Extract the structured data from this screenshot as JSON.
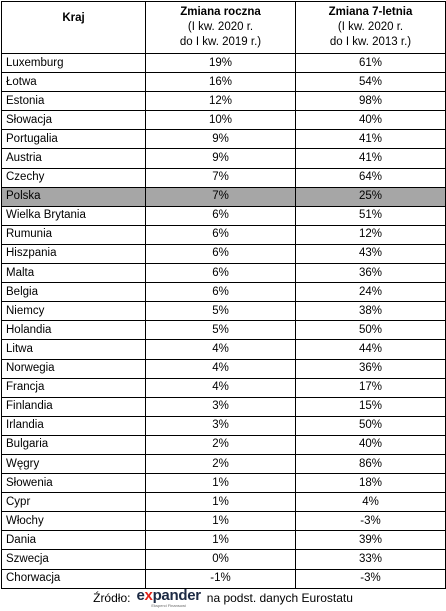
{
  "table": {
    "headers": {
      "country": "Kraj",
      "annual_title": "Zmiana roczna",
      "annual_sub1": "(I kw. 2020 r.",
      "annual_sub2": "do I kw. 2019 r.)",
      "seven_title": "Zmiana 7-letnia",
      "seven_sub1": "(I kw. 2020 r.",
      "seven_sub2": "do I kw. 2013 r.)"
    },
    "rows": [
      {
        "country": "Luxemburg",
        "annual": "19%",
        "seven": "61%"
      },
      {
        "country": "Łotwa",
        "annual": "16%",
        "seven": "54%"
      },
      {
        "country": "Estonia",
        "annual": "12%",
        "seven": "98%"
      },
      {
        "country": "Słowacja",
        "annual": "10%",
        "seven": "40%"
      },
      {
        "country": "Portugalia",
        "annual": "9%",
        "seven": "41%"
      },
      {
        "country": "Austria",
        "annual": "9%",
        "seven": "41%"
      },
      {
        "country": "Czechy",
        "annual": "7%",
        "seven": "64%"
      },
      {
        "country": "Polska",
        "annual": "7%",
        "seven": "25%",
        "highlight": true
      },
      {
        "country": "Wielka Brytania",
        "annual": "6%",
        "seven": "51%"
      },
      {
        "country": "Rumunia",
        "annual": "6%",
        "seven": "12%"
      },
      {
        "country": "Hiszpania",
        "annual": "6%",
        "seven": "43%"
      },
      {
        "country": "Malta",
        "annual": "6%",
        "seven": "36%"
      },
      {
        "country": "Belgia",
        "annual": "6%",
        "seven": "24%"
      },
      {
        "country": "Niemcy",
        "annual": "5%",
        "seven": "38%"
      },
      {
        "country": "Holandia",
        "annual": "5%",
        "seven": "50%"
      },
      {
        "country": "Litwa",
        "annual": "4%",
        "seven": "44%"
      },
      {
        "country": "Norwegia",
        "annual": "4%",
        "seven": "36%"
      },
      {
        "country": "Francja",
        "annual": "4%",
        "seven": "17%"
      },
      {
        "country": "Finlandia",
        "annual": "3%",
        "seven": "15%"
      },
      {
        "country": "Irlandia",
        "annual": "3%",
        "seven": "50%"
      },
      {
        "country": "Bulgaria",
        "annual": "2%",
        "seven": "40%"
      },
      {
        "country": "Węgry",
        "annual": "2%",
        "seven": "86%"
      },
      {
        "country": "Słowenia",
        "annual": "1%",
        "seven": "18%"
      },
      {
        "country": "Cypr",
        "annual": "1%",
        "seven": "4%"
      },
      {
        "country": "Włochy",
        "annual": "1%",
        "seven": "-3%"
      },
      {
        "country": "Dania",
        "annual": "1%",
        "seven": "39%"
      },
      {
        "country": "Szwecja",
        "annual": "0%",
        "seven": "33%"
      },
      {
        "country": "Chorwacja",
        "annual": "-1%",
        "seven": "-3%"
      }
    ],
    "highlight_color": "#a6a6a6"
  },
  "footer": {
    "prefix": "Źródło:",
    "logo_word_pre": "e",
    "logo_word_x": "x",
    "logo_word_post": "pander",
    "logo_sub": "Eksperci Finansowi",
    "suffix": "na podst. danych Eurostatu",
    "logo_colors": {
      "word": "#1c2a44",
      "x": "#e2231a"
    }
  }
}
